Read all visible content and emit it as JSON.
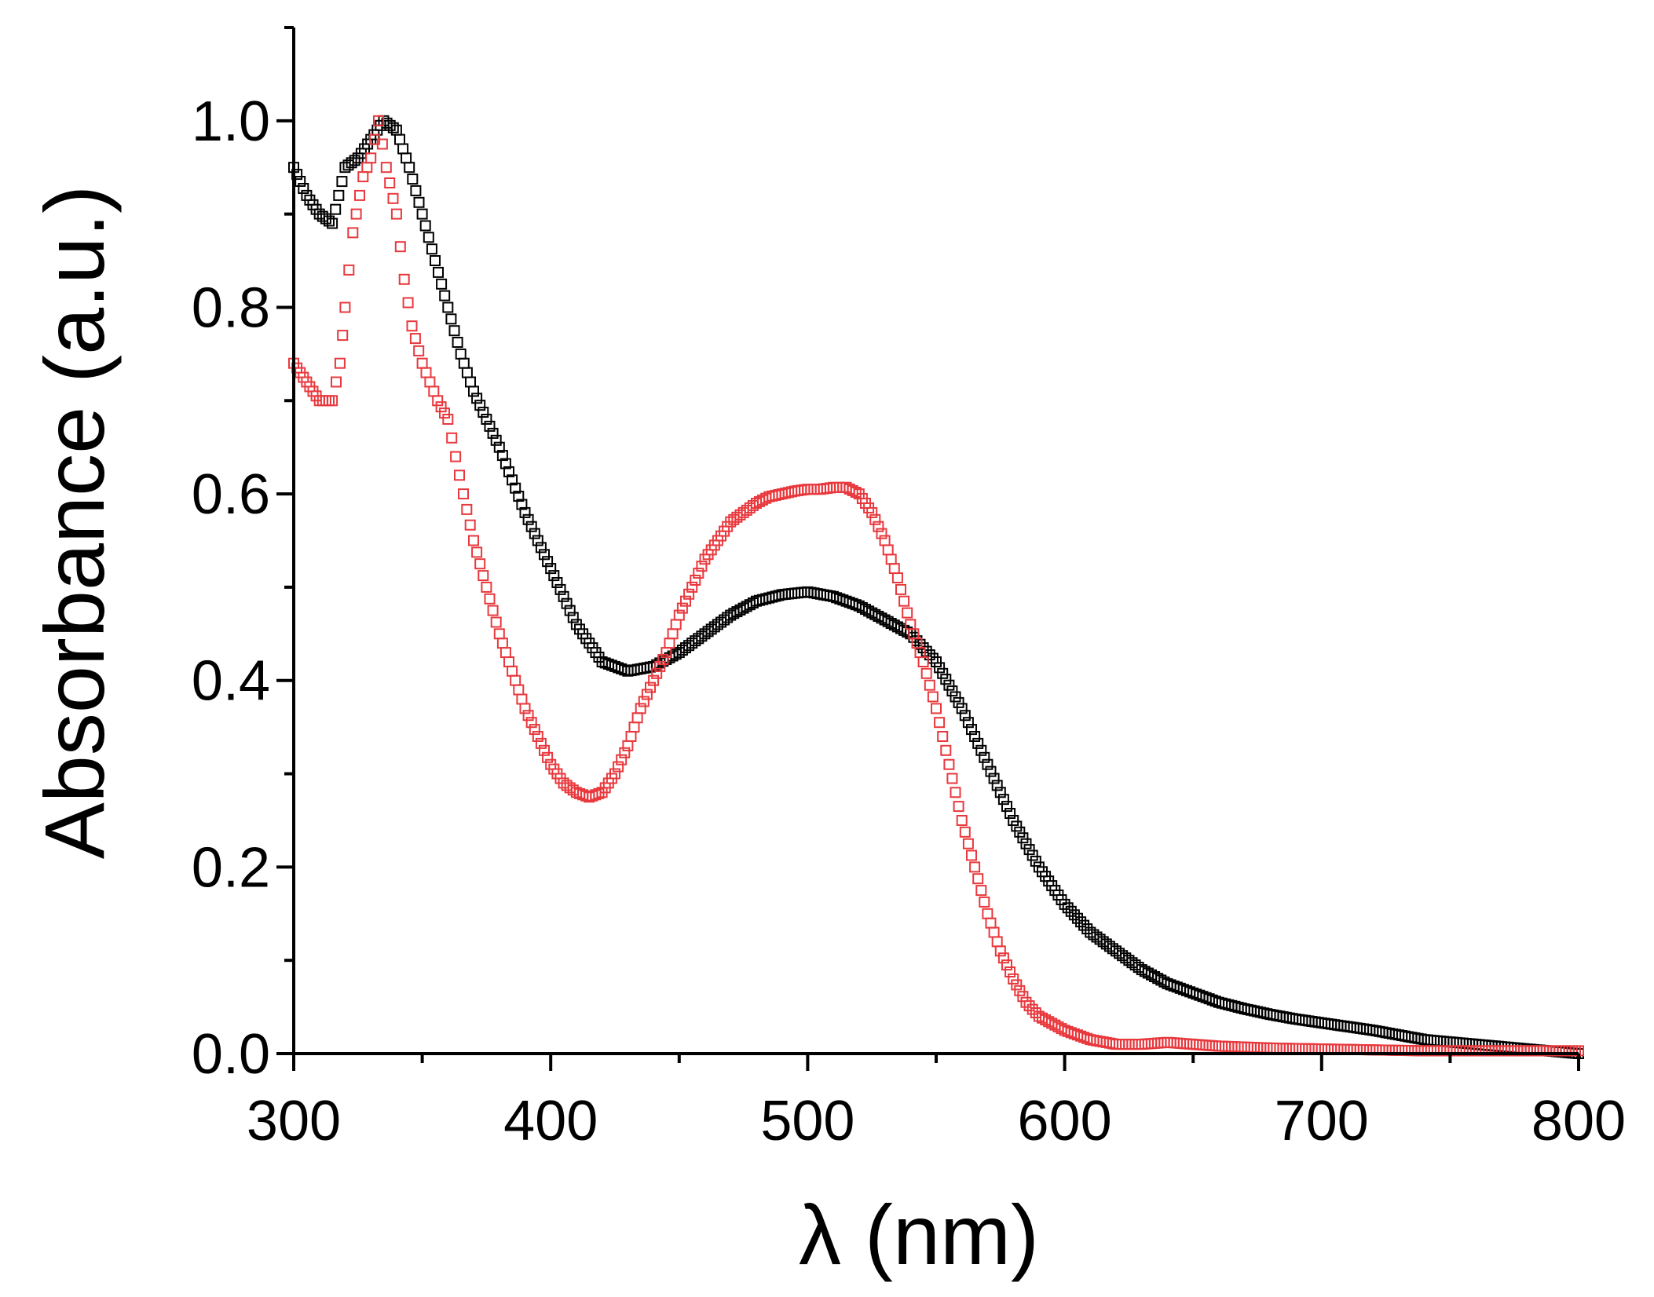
{
  "chart_data": {
    "type": "scatter",
    "title": "",
    "xlabel": "λ (nm)",
    "ylabel": "Absorbance (a.u.)",
    "xlim": [
      300,
      800
    ],
    "ylim": [
      0,
      1.1
    ],
    "x_ticks": [
      300,
      400,
      500,
      600,
      700,
      800
    ],
    "x_tick_labels": [
      "300",
      "400",
      "500",
      "600",
      "700",
      "800"
    ],
    "x_minor_ticks": [
      350,
      450,
      550,
      650,
      750
    ],
    "y_ticks": [
      0,
      0.2,
      0.4,
      0.6,
      0.8,
      1.0
    ],
    "y_tick_labels": [
      "0.0",
      "0.2",
      "0.4",
      "0.6",
      "0.8",
      "1.0"
    ],
    "y_minor_ticks": [
      0.1,
      0.3,
      0.5,
      0.7,
      0.9,
      1.1
    ],
    "grid": false,
    "legend": "none",
    "marker": "open-square",
    "series": [
      {
        "name": "black",
        "color": "#000000",
        "x": [
          300,
          305,
          310,
          315,
          320,
          325,
          330,
          335,
          340,
          345,
          350,
          355,
          360,
          365,
          370,
          380,
          390,
          400,
          410,
          420,
          430,
          440,
          450,
          460,
          470,
          480,
          490,
          500,
          510,
          520,
          530,
          540,
          550,
          560,
          570,
          580,
          590,
          600,
          610,
          620,
          630,
          640,
          650,
          660,
          670,
          680,
          690,
          700,
          720,
          740,
          760,
          780,
          800
        ],
        "y": [
          0.95,
          0.92,
          0.9,
          0.89,
          0.95,
          0.96,
          0.98,
          1.0,
          0.99,
          0.95,
          0.9,
          0.85,
          0.8,
          0.75,
          0.71,
          0.65,
          0.58,
          0.52,
          0.46,
          0.42,
          0.41,
          0.415,
          0.43,
          0.45,
          0.47,
          0.485,
          0.492,
          0.495,
          0.49,
          0.48,
          0.465,
          0.45,
          0.42,
          0.37,
          0.31,
          0.25,
          0.2,
          0.16,
          0.13,
          0.11,
          0.09,
          0.075,
          0.065,
          0.055,
          0.048,
          0.042,
          0.037,
          0.033,
          0.025,
          0.015,
          0.01,
          0.005,
          0.0
        ]
      },
      {
        "name": "red",
        "color": "#e8383d",
        "x": [
          300,
          305,
          310,
          315,
          318,
          320,
          323,
          327,
          330,
          333,
          336,
          340,
          343,
          346,
          350,
          353,
          356,
          360,
          363,
          366,
          370,
          375,
          380,
          385,
          390,
          395,
          400,
          405,
          410,
          415,
          420,
          425,
          430,
          435,
          440,
          445,
          450,
          455,
          460,
          465,
          470,
          475,
          480,
          485,
          490,
          495,
          500,
          505,
          510,
          515,
          520,
          525,
          530,
          535,
          540,
          545,
          550,
          555,
          560,
          565,
          570,
          575,
          580,
          585,
          590,
          600,
          610,
          620,
          630,
          640,
          650,
          660,
          680,
          700,
          720,
          740,
          760,
          780,
          800
        ],
        "y": [
          0.74,
          0.72,
          0.7,
          0.7,
          0.74,
          0.8,
          0.88,
          0.94,
          0.96,
          1.0,
          0.95,
          0.9,
          0.83,
          0.78,
          0.74,
          0.72,
          0.7,
          0.68,
          0.64,
          0.6,
          0.55,
          0.5,
          0.45,
          0.41,
          0.37,
          0.34,
          0.31,
          0.29,
          0.28,
          0.275,
          0.28,
          0.3,
          0.33,
          0.37,
          0.4,
          0.43,
          0.47,
          0.5,
          0.53,
          0.55,
          0.57,
          0.58,
          0.59,
          0.597,
          0.6,
          0.603,
          0.605,
          0.605,
          0.607,
          0.607,
          0.6,
          0.58,
          0.55,
          0.51,
          0.46,
          0.42,
          0.37,
          0.31,
          0.25,
          0.2,
          0.15,
          0.11,
          0.08,
          0.055,
          0.04,
          0.025,
          0.015,
          0.01,
          0.01,
          0.012,
          0.01,
          0.008,
          0.006,
          0.005,
          0.004,
          0.003,
          0.003,
          0.003,
          0.003
        ]
      }
    ]
  }
}
